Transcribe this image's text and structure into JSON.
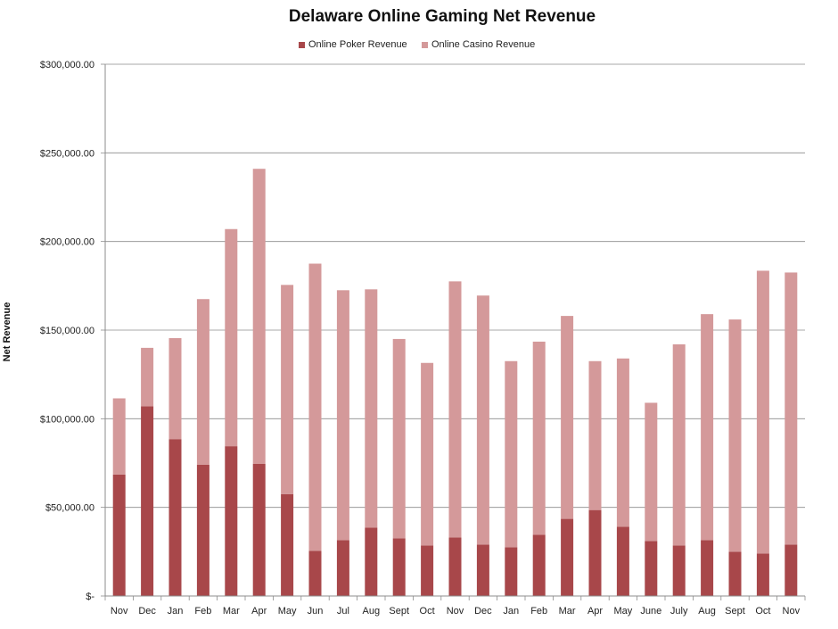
{
  "chart_data": {
    "type": "bar",
    "stacked": true,
    "title": "Delaware Online Gaming Net Revenue",
    "ylabel": "Net Revenue",
    "xlabel": "",
    "ylim": [
      0,
      300000
    ],
    "yticks": [
      0,
      50000,
      100000,
      150000,
      200000,
      250000,
      300000
    ],
    "ytick_labels": [
      "$-",
      "$50,000.00",
      "$100,000.00",
      "$150,000.00",
      "$200,000.00",
      "$250,000.00",
      "$300,000.00"
    ],
    "grid": true,
    "legend_position": "top",
    "categories": [
      "Nov",
      "Dec",
      "Jan",
      "Feb",
      "Mar",
      "Apr",
      "May",
      "Jun",
      "Jul",
      "Aug",
      "Sept",
      "Oct",
      "Nov",
      "Dec",
      "Jan",
      "Feb",
      "Mar",
      "Apr",
      "May",
      "June",
      "July",
      "Aug",
      "Sept",
      "Oct",
      "Nov"
    ],
    "series": [
      {
        "name": "Online Poker Revenue",
        "color": "#a8474a",
        "values": [
          68500,
          107000,
          88500,
          74000,
          84500,
          74500,
          57500,
          25500,
          31500,
          38500,
          32500,
          28500,
          33000,
          29000,
          27500,
          34500,
          43500,
          48500,
          39000,
          31000,
          28500,
          31500,
          25000,
          24000,
          29000
        ]
      },
      {
        "name": "Online Casino Revenue",
        "color": "#d4999a",
        "values": [
          43000,
          33000,
          57000,
          93500,
          122500,
          166500,
          118000,
          162000,
          141000,
          134500,
          112500,
          103000,
          144500,
          140500,
          105000,
          109000,
          114500,
          84000,
          95000,
          78000,
          113500,
          127500,
          131000,
          159500,
          153500
        ]
      }
    ]
  }
}
